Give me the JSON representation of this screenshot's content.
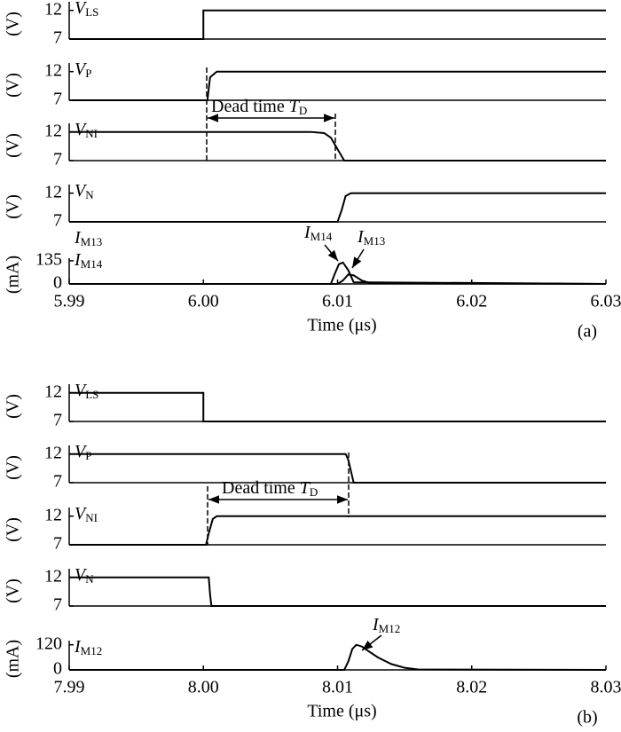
{
  "chart_data": [
    {
      "type": "line",
      "ylabel": "(V)",
      "ylim": [
        7,
        13.5
      ],
      "yticks": [
        7,
        12
      ],
      "xlim": [
        5.99,
        6.03
      ],
      "series": [
        {
          "name": "V",
          "name_sub": "LS",
          "color": "#000000",
          "x": [
            5.99,
            6.0,
            6.0,
            6.03
          ],
          "values": [
            7,
            7,
            12,
            12
          ]
        }
      ]
    },
    {
      "type": "line",
      "ylabel": "(V)",
      "ylim": [
        7,
        13.5
      ],
      "yticks": [
        7,
        12
      ],
      "xlim": [
        5.99,
        6.03
      ],
      "series": [
        {
          "name": "V",
          "name_sub": "P",
          "color": "#000000",
          "x": [
            5.99,
            6.0003,
            6.0005,
            6.001,
            6.03
          ],
          "values": [
            7,
            7,
            11,
            12,
            12
          ]
        }
      ]
    },
    {
      "type": "line",
      "ylabel": "(V)",
      "ylim": [
        7,
        13.5
      ],
      "yticks": [
        7,
        12
      ],
      "xlim": [
        5.99,
        6.03
      ],
      "dead_time": {
        "text": "Dead time",
        "var": "T",
        "sub": "D"
      },
      "series": [
        {
          "name": "V",
          "name_sub": "NI",
          "color": "#000000",
          "x": [
            5.99,
            6.008,
            6.009,
            6.0095,
            6.01,
            6.0105,
            6.03
          ],
          "values": [
            12,
            12,
            11.8,
            11,
            9,
            7,
            7
          ]
        }
      ]
    },
    {
      "type": "line",
      "ylabel": "(V)",
      "ylim": [
        7,
        13.5
      ],
      "yticks": [
        7,
        12
      ],
      "xlim": [
        5.99,
        6.03
      ],
      "series": [
        {
          "name": "V",
          "name_sub": "N",
          "color": "#000000",
          "x": [
            5.99,
            6.01,
            6.0103,
            6.0106,
            6.011,
            6.03
          ],
          "values": [
            7,
            7,
            9,
            11.5,
            12,
            12
          ]
        }
      ]
    },
    {
      "type": "line",
      "ylabel": "(mA)",
      "ylim": [
        0,
        150
      ],
      "yticks": [
        0,
        135
      ],
      "xlim": [
        5.99,
        6.03
      ],
      "xticks": [
        5.99,
        {
          "value": 6.0,
          "label": "6.00"
        },
        6.01,
        6.02,
        6.03
      ],
      "xlabel": "Time (μs)",
      "tag": "(a)",
      "annotations": [
        {
          "text": "I",
          "sub": "M14"
        },
        {
          "text": "I",
          "sub": "M13"
        }
      ],
      "series": [
        {
          "name": "I",
          "name_sub": "M13",
          "color": "#000000",
          "x": [
            5.99,
            6.01,
            6.0104,
            6.0108,
            6.0112,
            6.0118,
            6.0125,
            6.03
          ],
          "values": [
            0,
            0,
            20,
            55,
            50,
            20,
            3,
            0
          ]
        },
        {
          "name": "I",
          "name_sub": "M14",
          "color": "#000000",
          "x": [
            5.99,
            6.0095,
            6.0098,
            6.0101,
            6.0104,
            6.0108,
            6.0112,
            6.03
          ],
          "values": [
            0,
            0,
            60,
            115,
            125,
            80,
            10,
            0
          ]
        }
      ]
    },
    {
      "type": "line",
      "ylabel": "(V)",
      "ylim": [
        7,
        13.5
      ],
      "yticks": [
        7,
        12
      ],
      "xlim": [
        7.99,
        8.03
      ],
      "series": [
        {
          "name": "V",
          "name_sub": "LS",
          "color": "#000000",
          "x": [
            7.99,
            8.0,
            8.0,
            8.03
          ],
          "values": [
            12,
            12,
            7,
            7
          ]
        }
      ]
    },
    {
      "type": "line",
      "ylabel": "(V)",
      "ylim": [
        7,
        13.5
      ],
      "yticks": [
        7,
        12
      ],
      "xlim": [
        7.99,
        8.03
      ],
      "series": [
        {
          "name": "V",
          "name_sub": "P",
          "color": "#000000",
          "x": [
            7.99,
            8.0106,
            8.0108,
            8.011,
            8.0112,
            8.03
          ],
          "values": [
            12,
            12,
            11,
            9,
            7,
            7
          ]
        }
      ]
    },
    {
      "type": "line",
      "ylabel": "(V)",
      "ylim": [
        7,
        13.5
      ],
      "yticks": [
        7,
        12
      ],
      "xlim": [
        7.99,
        8.03
      ],
      "dead_time": {
        "text": "Dead time",
        "var": "T",
        "sub": "D"
      },
      "series": [
        {
          "name": "V",
          "name_sub": "NI",
          "color": "#000000",
          "x": [
            7.99,
            8.0002,
            8.0004,
            8.0007,
            8.001,
            8.03
          ],
          "values": [
            7,
            7,
            9,
            11.5,
            12,
            12
          ]
        }
      ]
    },
    {
      "type": "line",
      "ylabel": "(V)",
      "ylim": [
        7,
        13.5
      ],
      "yticks": [
        7,
        12
      ],
      "xlim": [
        7.99,
        8.03
      ],
      "series": [
        {
          "name": "V",
          "name_sub": "N",
          "color": "#000000",
          "x": [
            7.99,
            8.0004,
            8.0005,
            8.0006,
            8.03
          ],
          "values": [
            12,
            12,
            9,
            7,
            7
          ]
        }
      ]
    },
    {
      "type": "line",
      "ylabel": "(mA)",
      "ylim": [
        0,
        140
      ],
      "yticks": [
        0,
        120
      ],
      "xlim": [
        7.99,
        8.03
      ],
      "xticks": [
        7.99,
        {
          "value": 8.0,
          "label": "8.00"
        },
        8.01,
        8.02,
        8.03
      ],
      "xlabel": "Time (μs)",
      "tag": "(b)",
      "annotations": [
        {
          "text": "I",
          "sub": "M12"
        }
      ],
      "series": [
        {
          "name": "I",
          "name_sub": "M12",
          "color": "#000000",
          "x": [
            7.99,
            8.0105,
            8.0108,
            8.0111,
            8.0114,
            8.0118,
            8.0123,
            8.013,
            8.014,
            8.015,
            8.016,
            8.03
          ],
          "values": [
            0,
            0,
            40,
            100,
            120,
            112,
            90,
            60,
            28,
            10,
            2,
            0
          ]
        }
      ]
    }
  ]
}
